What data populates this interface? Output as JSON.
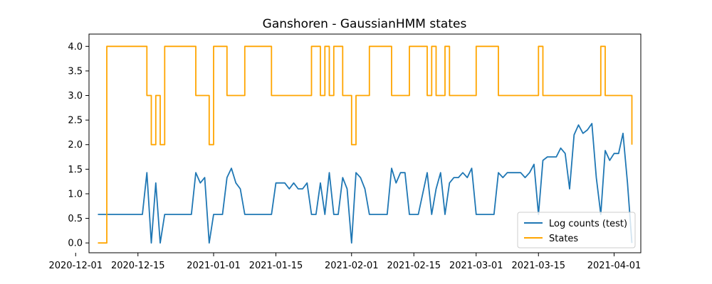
{
  "chart_data": {
    "type": "line",
    "title": "Ganshoren - GaussianHMM states",
    "xlabel": "",
    "ylabel": "",
    "xlim": [
      "2020-12-04",
      "2021-04-07"
    ],
    "ylim": [
      -0.2,
      4.25
    ],
    "grid": false,
    "legend_position": "lower-right",
    "x_ticks": [
      "2020-12-01",
      "2020-12-15",
      "2021-01-01",
      "2021-01-15",
      "2021-02-01",
      "2021-02-15",
      "2021-03-01",
      "2021-03-15",
      "2021-04-01"
    ],
    "y_ticks": [
      "0.0",
      "0.5",
      "1.0",
      "1.5",
      "2.0",
      "2.5",
      "3.0",
      "3.5",
      "4.0"
    ],
    "series": [
      {
        "name": "Log counts (test)",
        "color": "#1f77b4",
        "step": false,
        "points": [
          [
            "2020-12-06",
            0.58
          ],
          [
            "2020-12-07",
            0.58
          ],
          [
            "2020-12-08",
            0.58
          ],
          [
            "2020-12-10",
            0.58
          ],
          [
            "2020-12-12",
            0.58
          ],
          [
            "2020-12-14",
            0.58
          ],
          [
            "2020-12-16",
            0.58
          ],
          [
            "2020-12-17",
            1.43
          ],
          [
            "2020-12-18",
            0.0
          ],
          [
            "2020-12-19",
            1.22
          ],
          [
            "2020-12-20",
            0.0
          ],
          [
            "2020-12-21",
            0.58
          ],
          [
            "2020-12-24",
            0.58
          ],
          [
            "2020-12-27",
            0.58
          ],
          [
            "2020-12-28",
            1.43
          ],
          [
            "2020-12-29",
            1.22
          ],
          [
            "2020-12-30",
            1.33
          ],
          [
            "2020-12-31",
            0.0
          ],
          [
            "2021-01-01",
            0.58
          ],
          [
            "2021-01-03",
            0.58
          ],
          [
            "2021-01-04",
            1.33
          ],
          [
            "2021-01-05",
            1.52
          ],
          [
            "2021-01-06",
            1.22
          ],
          [
            "2021-01-07",
            1.1
          ],
          [
            "2021-01-08",
            0.58
          ],
          [
            "2021-01-11",
            0.58
          ],
          [
            "2021-01-14",
            0.58
          ],
          [
            "2021-01-15",
            1.22
          ],
          [
            "2021-01-17",
            1.22
          ],
          [
            "2021-01-18",
            1.1
          ],
          [
            "2021-01-19",
            1.22
          ],
          [
            "2021-01-20",
            1.1
          ],
          [
            "2021-01-21",
            1.1
          ],
          [
            "2021-01-22",
            1.22
          ],
          [
            "2021-01-23",
            0.58
          ],
          [
            "2021-01-24",
            0.58
          ],
          [
            "2021-01-25",
            1.22
          ],
          [
            "2021-01-26",
            0.58
          ],
          [
            "2021-01-27",
            1.43
          ],
          [
            "2021-01-28",
            0.58
          ],
          [
            "2021-01-29",
            0.58
          ],
          [
            "2021-01-30",
            1.33
          ],
          [
            "2021-01-31",
            1.1
          ],
          [
            "2021-02-01",
            0.0
          ],
          [
            "2021-02-02",
            1.43
          ],
          [
            "2021-02-03",
            1.33
          ],
          [
            "2021-02-04",
            1.1
          ],
          [
            "2021-02-05",
            0.58
          ],
          [
            "2021-02-07",
            0.58
          ],
          [
            "2021-02-09",
            0.58
          ],
          [
            "2021-02-10",
            1.52
          ],
          [
            "2021-02-11",
            1.22
          ],
          [
            "2021-02-12",
            1.43
          ],
          [
            "2021-02-13",
            1.43
          ],
          [
            "2021-02-14",
            0.58
          ],
          [
            "2021-02-16",
            0.58
          ],
          [
            "2021-02-18",
            1.43
          ],
          [
            "2021-02-19",
            0.58
          ],
          [
            "2021-02-20",
            1.1
          ],
          [
            "2021-02-21",
            1.43
          ],
          [
            "2021-02-22",
            0.58
          ],
          [
            "2021-02-23",
            1.22
          ],
          [
            "2021-02-24",
            1.33
          ],
          [
            "2021-02-25",
            1.33
          ],
          [
            "2021-02-26",
            1.43
          ],
          [
            "2021-02-27",
            1.33
          ],
          [
            "2021-02-28",
            1.52
          ],
          [
            "2021-03-01",
            0.58
          ],
          [
            "2021-03-03",
            0.58
          ],
          [
            "2021-03-05",
            0.58
          ],
          [
            "2021-03-06",
            1.43
          ],
          [
            "2021-03-07",
            1.33
          ],
          [
            "2021-03-08",
            1.43
          ],
          [
            "2021-03-09",
            1.43
          ],
          [
            "2021-03-10",
            1.43
          ],
          [
            "2021-03-11",
            1.43
          ],
          [
            "2021-03-12",
            1.33
          ],
          [
            "2021-03-13",
            1.43
          ],
          [
            "2021-03-14",
            1.6
          ],
          [
            "2021-03-15",
            0.58
          ],
          [
            "2021-03-16",
            1.68
          ],
          [
            "2021-03-17",
            1.75
          ],
          [
            "2021-03-18",
            1.75
          ],
          [
            "2021-03-19",
            1.75
          ],
          [
            "2021-03-20",
            1.93
          ],
          [
            "2021-03-21",
            1.82
          ],
          [
            "2021-03-22",
            1.1
          ],
          [
            "2021-03-23",
            2.2
          ],
          [
            "2021-03-24",
            2.4
          ],
          [
            "2021-03-25",
            2.23
          ],
          [
            "2021-03-26",
            2.3
          ],
          [
            "2021-03-27",
            2.43
          ],
          [
            "2021-03-28",
            1.33
          ],
          [
            "2021-03-29",
            0.58
          ],
          [
            "2021-03-30",
            1.88
          ],
          [
            "2021-03-31",
            1.68
          ],
          [
            "2021-04-01",
            1.82
          ],
          [
            "2021-04-02",
            1.82
          ],
          [
            "2021-04-03",
            2.23
          ],
          [
            "2021-04-04",
            1.22
          ],
          [
            "2021-04-05",
            0.0
          ]
        ]
      },
      {
        "name": "States",
        "color": "#ffa500",
        "step": true,
        "points": [
          [
            "2020-12-06",
            0
          ],
          [
            "2020-12-07",
            0
          ],
          [
            "2020-12-08",
            4
          ],
          [
            "2020-12-17",
            3
          ],
          [
            "2020-12-18",
            2
          ],
          [
            "2020-12-19",
            3
          ],
          [
            "2020-12-20",
            2
          ],
          [
            "2020-12-21",
            4
          ],
          [
            "2020-12-28",
            3
          ],
          [
            "2020-12-31",
            2
          ],
          [
            "2021-01-01",
            4
          ],
          [
            "2021-01-04",
            3
          ],
          [
            "2021-01-08",
            4
          ],
          [
            "2021-01-14",
            3
          ],
          [
            "2021-01-23",
            4
          ],
          [
            "2021-01-25",
            3
          ],
          [
            "2021-01-26",
            4
          ],
          [
            "2021-01-27",
            3
          ],
          [
            "2021-01-28",
            4
          ],
          [
            "2021-01-30",
            3
          ],
          [
            "2021-02-01",
            2
          ],
          [
            "2021-02-02",
            3
          ],
          [
            "2021-02-05",
            4
          ],
          [
            "2021-02-10",
            3
          ],
          [
            "2021-02-14",
            4
          ],
          [
            "2021-02-18",
            3
          ],
          [
            "2021-02-19",
            4
          ],
          [
            "2021-02-20",
            3
          ],
          [
            "2021-02-22",
            4
          ],
          [
            "2021-02-23",
            3
          ],
          [
            "2021-03-01",
            4
          ],
          [
            "2021-03-06",
            3
          ],
          [
            "2021-03-15",
            4
          ],
          [
            "2021-03-16",
            3
          ],
          [
            "2021-03-29",
            4
          ],
          [
            "2021-03-30",
            3
          ],
          [
            "2021-04-05",
            2
          ]
        ]
      }
    ]
  }
}
